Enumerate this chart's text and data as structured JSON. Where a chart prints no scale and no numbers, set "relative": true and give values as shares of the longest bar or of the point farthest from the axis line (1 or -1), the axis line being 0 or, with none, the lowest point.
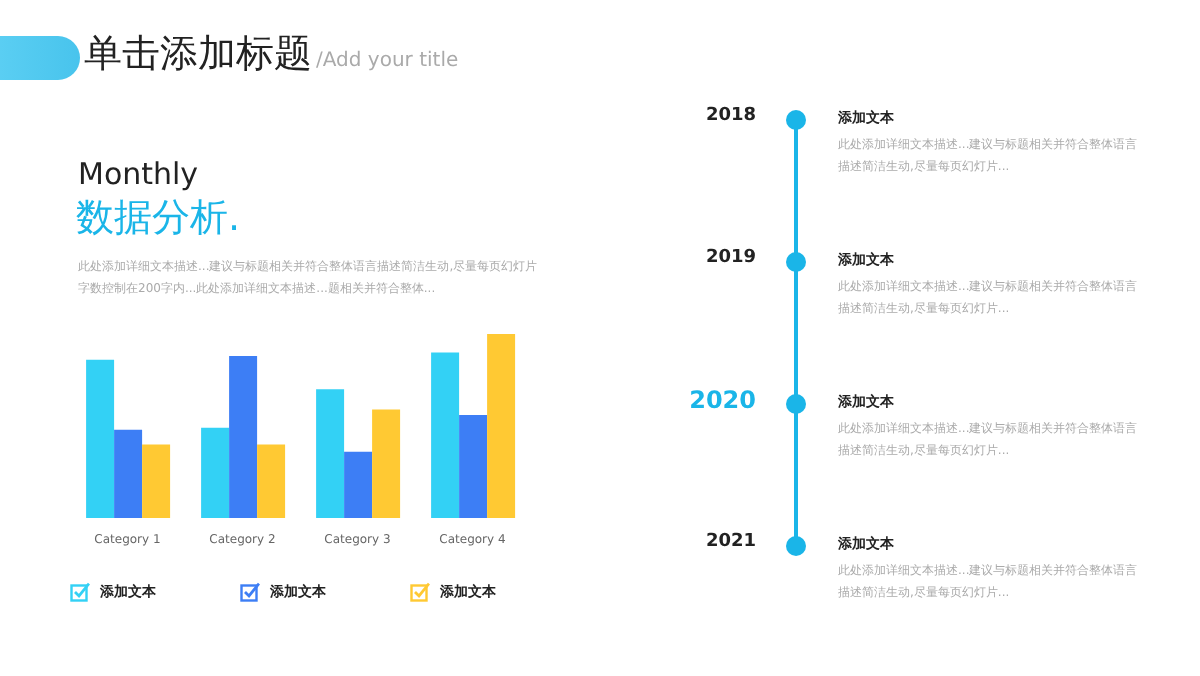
{
  "chart_data": {
    "type": "bar",
    "title": "单击添加标题",
    "subtitle": "/Add your title",
    "annotations": [
      "Monthly",
      "数据分析.",
      "此处添加详细文本描述...建议与标题相关并符合整体语言描述简洁生动,尽量每页幻灯片字数控制在200字内...此处添加详细文本描述...题相关并符合整体...",
      "2018",
      "添加文本",
      "此处添加详细文本描述...建议与标题相关并符合整体语言描述简洁生动,尽量每页幻灯片...",
      "2019",
      "添加文本",
      "此处添加详细文本描述...建议与标题相关并符合整体语言描述简洁生动,尽量每页幻灯片...",
      "2020",
      "添加文本",
      "此处添加详细文本描述...建议与标题相关并符合整体语言描述简洁生动,尽量每页幻灯片...",
      "2021",
      "添加文本",
      "此处添加详细文本描述...建议与标题相关并符合整体语言描述简洁生动,尽量每页幻灯片..."
    ],
    "relative": true,
    "categories": [
      "Category 1",
      "Category 2",
      "Category 3",
      "Category 4"
    ],
    "series": [
      {
        "name": "添加文本",
        "color": "#33d1f5",
        "values": [
          0.86,
          0.49,
          0.7,
          0.9
        ]
      },
      {
        "name": "添加文本",
        "color": "#3d7ef5",
        "values": [
          0.48,
          0.88,
          0.36,
          0.56
        ]
      },
      {
        "name": "添加文本",
        "color": "#ffc933",
        "values": [
          0.4,
          0.4,
          0.59,
          1
        ]
      }
    ],
    "legend": "bottom"
  }
}
